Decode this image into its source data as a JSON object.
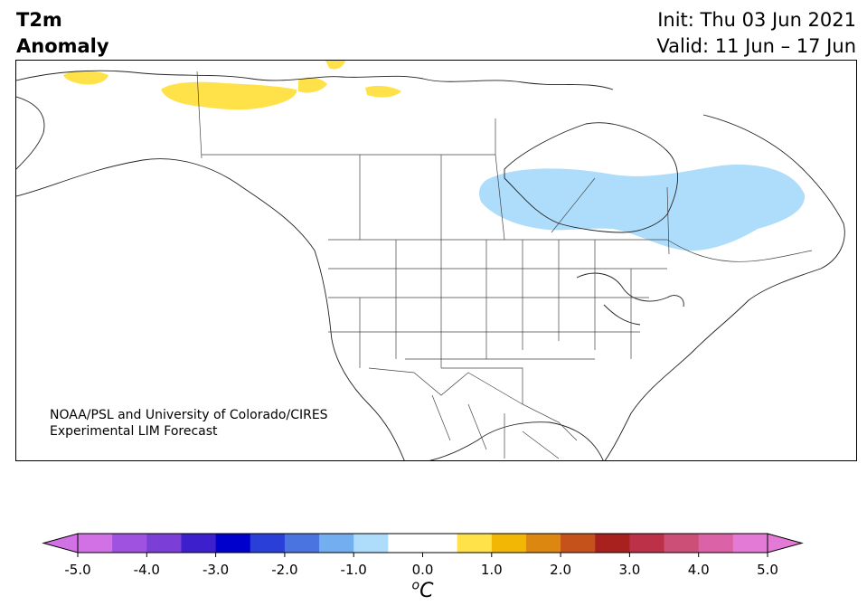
{
  "header": {
    "title_line1": "T2m",
    "title_line2": "Anomaly",
    "init_text": "Init: Thu 03 Jun 2021",
    "valid_text": "Valid: 11 Jun – 17 Jun"
  },
  "map": {
    "credit_line1": "NOAA/PSL and University of Colorado/CIRES",
    "credit_line2": "Experimental LIM Forecast",
    "anomaly_regions": [
      {
        "region": "northern Alaska / Yukon",
        "sign": "warm",
        "level": "0.5 to 1.0",
        "color": "#ffe24a"
      },
      {
        "region": "Hudson Bay / northern Ontario and Quebec",
        "sign": "cold",
        "level": "-1.0 to -0.5",
        "color": "#aedcfb"
      }
    ]
  },
  "colorbar": {
    "unit": "oC",
    "ticks": [
      "-5.0",
      "-4.0",
      "-3.0",
      "-2.0",
      "-1.0",
      "0.0",
      "1.0",
      "2.0",
      "3.0",
      "4.0",
      "5.0"
    ],
    "colors": [
      "#d270e6",
      "#9f52df",
      "#7b3fd8",
      "#3d1fcc",
      "#0000cc",
      "#2a3fd8",
      "#4a74e0",
      "#73aef0",
      "#aedcfb",
      "#ffffff",
      "#ffffff",
      "#ffe24a",
      "#f2b705",
      "#dc870f",
      "#c4521a",
      "#a8211f",
      "#bc3048",
      "#cc4f78",
      "#dc62a8",
      "#e37ad5"
    ],
    "extend_low_color": "#d270e6",
    "extend_high_color": "#e37ad5"
  }
}
